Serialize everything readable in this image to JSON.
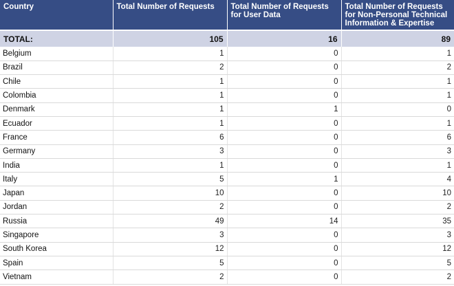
{
  "table": {
    "headers": [
      "Country",
      "Total Number of Requests",
      "Total Number of Requests for User Data",
      "Total Number of Requests for Non-Personal Technical Information & Expertise"
    ],
    "total": {
      "label": "TOTAL:",
      "values": [
        "105",
        "16",
        "89"
      ]
    },
    "rows": [
      [
        "Belgium",
        "1",
        "0",
        "1"
      ],
      [
        "Brazil",
        "2",
        "0",
        "2"
      ],
      [
        "Chile",
        "1",
        "0",
        "1"
      ],
      [
        "Colombia",
        "1",
        "0",
        "1"
      ],
      [
        "Denmark",
        "1",
        "1",
        "0"
      ],
      [
        "Ecuador",
        "1",
        "0",
        "1"
      ],
      [
        "France",
        "6",
        "0",
        "6"
      ],
      [
        "Germany",
        "3",
        "0",
        "3"
      ],
      [
        "India",
        "1",
        "0",
        "1"
      ],
      [
        "Italy",
        "5",
        "1",
        "4"
      ],
      [
        "Japan",
        "10",
        "0",
        "10"
      ],
      [
        "Jordan",
        "2",
        "0",
        "2"
      ],
      [
        "Russia",
        "49",
        "14",
        "35"
      ],
      [
        "Singapore",
        "3",
        "0",
        "3"
      ],
      [
        "South Korea",
        "12",
        "0",
        "12"
      ],
      [
        "Spain",
        "5",
        "0",
        "5"
      ],
      [
        "Vietnam",
        "2",
        "0",
        "2"
      ]
    ]
  }
}
